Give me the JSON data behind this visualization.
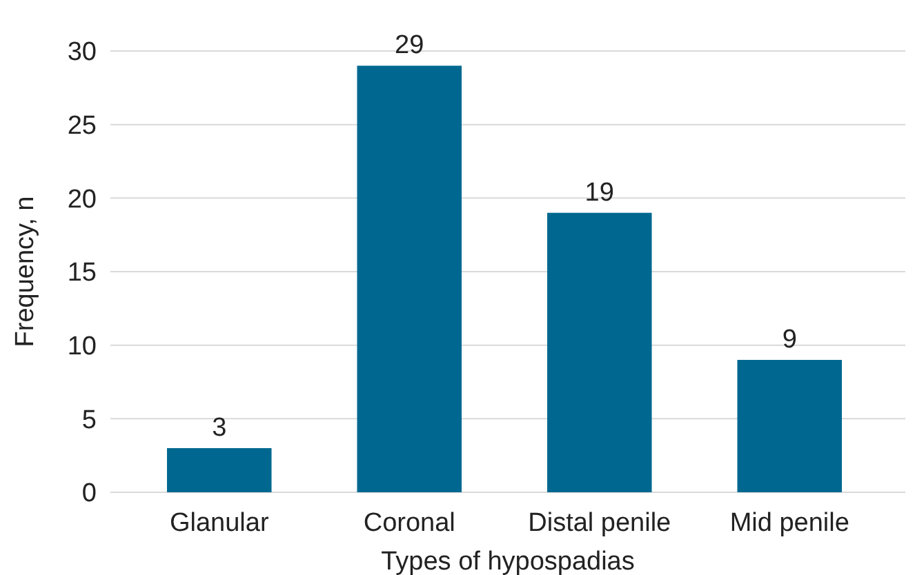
{
  "chart_data": {
    "type": "bar",
    "xlabel": "Types of hypospadias",
    "ylabel": "Frequency, n",
    "categories": [
      "Glanular",
      "Coronal",
      "Distal penile",
      "Mid penile"
    ],
    "values": [
      3,
      29,
      19,
      9
    ],
    "color": "#006890",
    "ylim": [
      0,
      30
    ],
    "yticks": [
      0,
      5,
      10,
      15,
      20,
      25,
      30
    ],
    "grid": "y",
    "data_labels": true
  }
}
